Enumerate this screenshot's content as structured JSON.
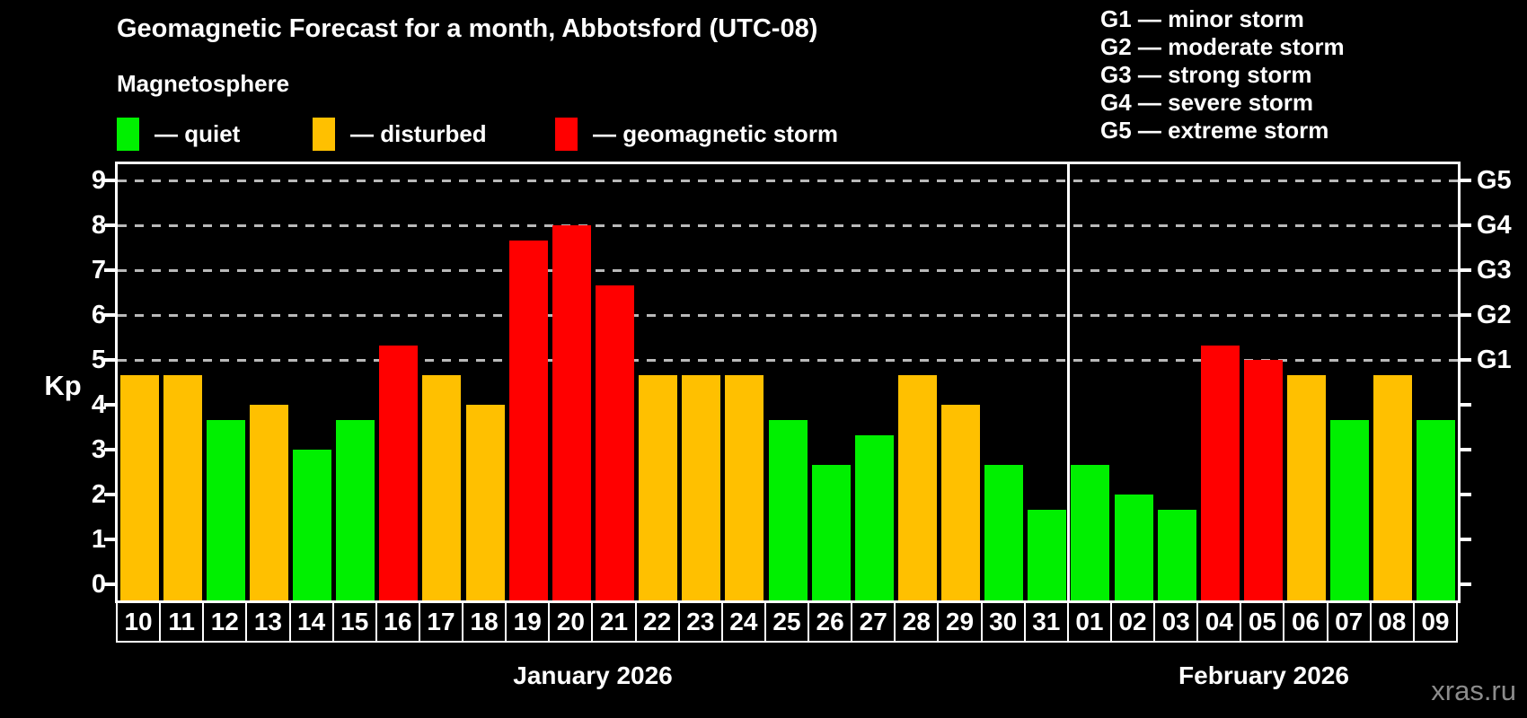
{
  "title": "Geomagnetic Forecast for a month, Abbotsford (UTC-08)",
  "subtitle": "Magnetosphere",
  "legend": {
    "items": [
      {
        "id": "quiet",
        "label": "— quiet",
        "color": "#00f000"
      },
      {
        "id": "disturbed",
        "label": "— disturbed",
        "color": "#ffc000"
      },
      {
        "id": "storm",
        "label": "— geomagnetic storm",
        "color": "#ff0000"
      }
    ]
  },
  "storm_scale": [
    "G1 — minor storm",
    "G2 — moderate storm",
    "G3 — strong storm",
    "G4 — severe storm",
    "G5 — extreme storm"
  ],
  "y_axis_label": "Kp",
  "watermark": "xras.ru",
  "chart_data": {
    "type": "bar",
    "title": "Geomagnetic Forecast for a month, Abbotsford (UTC-08)",
    "ylabel": "Kp",
    "ylim": [
      0,
      9.4
    ],
    "yticks": [
      0,
      1,
      2,
      3,
      4,
      5,
      6,
      7,
      8,
      9
    ],
    "gridlines_at": [
      5,
      6,
      7,
      8,
      9
    ],
    "grid": "dashed horizontal at Kp 5-9",
    "legend_position": "top-left",
    "right_axis_labels": [
      {
        "kp": 5,
        "label": "G1"
      },
      {
        "kp": 6,
        "label": "G2"
      },
      {
        "kp": 7,
        "label": "G3"
      },
      {
        "kp": 8,
        "label": "G4"
      },
      {
        "kp": 9,
        "label": "G5"
      }
    ],
    "status_colors": {
      "quiet": "#00f000",
      "disturbed": "#ffc000",
      "storm": "#ff0000"
    },
    "months": [
      {
        "name": "January 2026",
        "days": [
          {
            "day": "10",
            "kp": 4.67,
            "status": "disturbed"
          },
          {
            "day": "11",
            "kp": 4.67,
            "status": "disturbed"
          },
          {
            "day": "12",
            "kp": 3.67,
            "status": "quiet"
          },
          {
            "day": "13",
            "kp": 4.0,
            "status": "disturbed"
          },
          {
            "day": "14",
            "kp": 3.0,
            "status": "quiet"
          },
          {
            "day": "15",
            "kp": 3.67,
            "status": "quiet"
          },
          {
            "day": "16",
            "kp": 5.33,
            "status": "storm"
          },
          {
            "day": "17",
            "kp": 4.67,
            "status": "disturbed"
          },
          {
            "day": "18",
            "kp": 4.0,
            "status": "disturbed"
          },
          {
            "day": "19",
            "kp": 7.67,
            "status": "storm"
          },
          {
            "day": "20",
            "kp": 8.0,
            "status": "storm"
          },
          {
            "day": "21",
            "kp": 6.67,
            "status": "storm"
          },
          {
            "day": "22",
            "kp": 4.67,
            "status": "disturbed"
          },
          {
            "day": "23",
            "kp": 4.67,
            "status": "disturbed"
          },
          {
            "day": "24",
            "kp": 4.67,
            "status": "disturbed"
          },
          {
            "day": "25",
            "kp": 3.67,
            "status": "quiet"
          },
          {
            "day": "26",
            "kp": 2.67,
            "status": "quiet"
          },
          {
            "day": "27",
            "kp": 3.33,
            "status": "quiet"
          },
          {
            "day": "28",
            "kp": 4.67,
            "status": "disturbed"
          },
          {
            "day": "29",
            "kp": 4.0,
            "status": "disturbed"
          },
          {
            "day": "30",
            "kp": 2.67,
            "status": "quiet"
          },
          {
            "day": "31",
            "kp": 1.67,
            "status": "quiet"
          }
        ]
      },
      {
        "name": "February 2026",
        "days": [
          {
            "day": "01",
            "kp": 2.67,
            "status": "quiet"
          },
          {
            "day": "02",
            "kp": 2.0,
            "status": "quiet"
          },
          {
            "day": "03",
            "kp": 1.67,
            "status": "quiet"
          },
          {
            "day": "04",
            "kp": 5.33,
            "status": "storm"
          },
          {
            "day": "05",
            "kp": 5.0,
            "status": "storm"
          },
          {
            "day": "06",
            "kp": 4.67,
            "status": "disturbed"
          },
          {
            "day": "07",
            "kp": 3.67,
            "status": "quiet"
          },
          {
            "day": "08",
            "kp": 4.67,
            "status": "disturbed"
          },
          {
            "day": "09",
            "kp": 3.67,
            "status": "quiet"
          }
        ]
      }
    ]
  }
}
